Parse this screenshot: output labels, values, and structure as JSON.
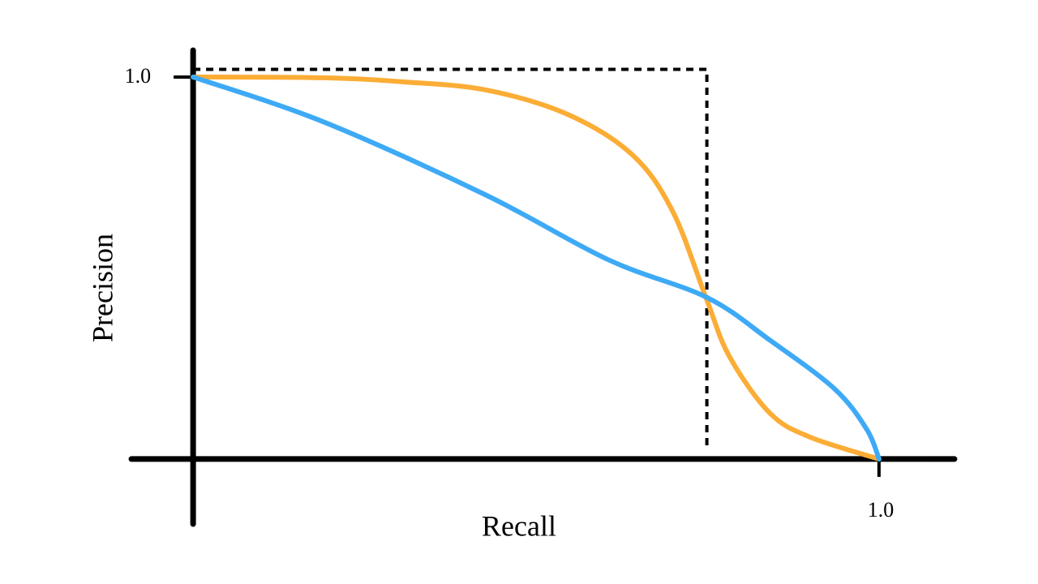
{
  "chart_data": {
    "type": "line",
    "x_label": "Recall",
    "y_label": "Precision",
    "xlim": [
      -0.09,
      1.11
    ],
    "ylim": [
      -0.17,
      1.07
    ],
    "xticks": [
      {
        "value": 1,
        "label": "1.0"
      }
    ],
    "yticks": [
      {
        "value": 1,
        "label": "1.0"
      }
    ],
    "series": [
      {
        "color": "#000000",
        "dashed": true,
        "x": [
          0,
          0.749,
          0.749
        ],
        "values": [
          1.02,
          1.02,
          0.025
        ]
      },
      {
        "color": "#fbad36",
        "dashed": false,
        "x": [
          0,
          0.19,
          0.309,
          0.427,
          0.545,
          0.64,
          0.699,
          0.749,
          0.782,
          0.841,
          0.9,
          1.0
        ],
        "values": [
          1.0,
          0.998,
          0.987,
          0.966,
          0.903,
          0.797,
          0.649,
          0.416,
          0.268,
          0.12,
          0.057,
          0.0
        ]
      },
      {
        "color": "#3eaaf5",
        "dashed": false,
        "x": [
          0,
          0.191,
          0.427,
          0.605,
          0.749,
          0.841,
          0.935,
          0.982,
          1.0
        ],
        "values": [
          1.0,
          0.882,
          0.691,
          0.522,
          0.423,
          0.311,
          0.184,
          0.078,
          0.0
        ]
      }
    ]
  }
}
